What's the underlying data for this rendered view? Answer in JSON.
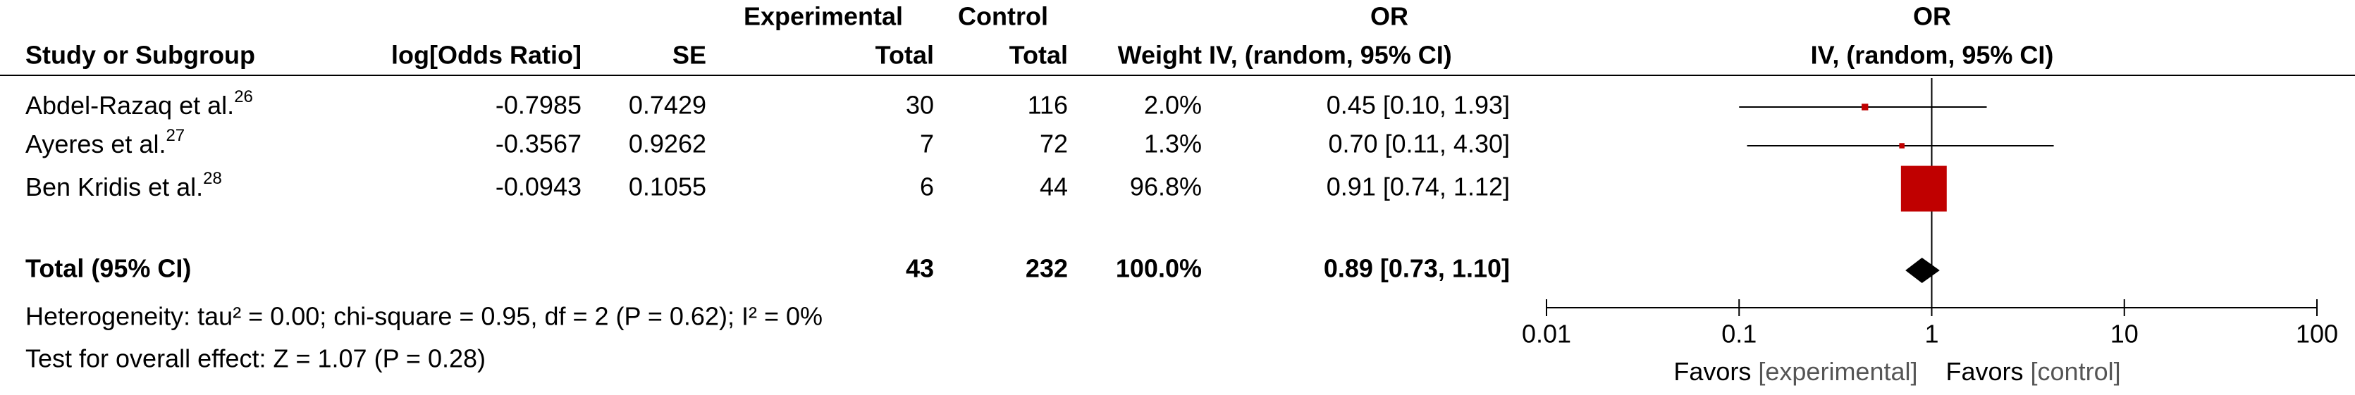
{
  "table": {
    "group_headers": {
      "experimental": "Experimental",
      "control": "Control",
      "or_table": "OR",
      "or_plot": "OR"
    },
    "columns": {
      "study": "Study or Subgroup",
      "log_or": "log[Odds Ratio]",
      "se": "SE",
      "exp_total": "Total",
      "ctrl_total": "Total",
      "weight": "Weight",
      "method": "IV, (random, 95% CI)",
      "plot_method": "IV, (random, 95% CI)"
    },
    "rows": [
      {
        "study": "Abdel-Razaq et al.",
        "ref": "26",
        "log_or": "-0.7985",
        "se": "0.7429",
        "exp_total": "30",
        "ctrl_total": "116",
        "weight": "2.0%",
        "or_ci": "0.45 [0.10, 1.93]"
      },
      {
        "study": "Ayeres et al.",
        "ref": "27",
        "log_or": "-0.3567",
        "se": "0.9262",
        "exp_total": "7",
        "ctrl_total": "72",
        "weight": "1.3%",
        "or_ci": "0.70 [0.11, 4.30]"
      },
      {
        "study": "Ben Kridis et al.",
        "ref": "28",
        "log_or": "-0.0943",
        "se": "0.1055",
        "exp_total": "6",
        "ctrl_total": "44",
        "weight": "96.8%",
        "or_ci": "0.91 [0.74, 1.12]"
      }
    ],
    "total": {
      "label": "Total (95% CI)",
      "exp_total": "43",
      "ctrl_total": "232",
      "weight": "100.0%",
      "or_ci": "0.89 [0.73, 1.10]"
    },
    "heterogeneity": "Heterogeneity: tau² = 0.00; chi-square = 0.95, df = 2 (P = 0.62); I² = 0%",
    "overall": "Test for overall effect: Z = 1.07 (P = 0.28)"
  },
  "chart_data": {
    "type": "forest",
    "log_scale": true,
    "xlim": [
      0.01,
      100
    ],
    "xticks": [
      0.01,
      0.1,
      1,
      10,
      100
    ],
    "estimates": [
      0.45,
      0.7,
      0.91
    ],
    "lower": [
      0.1,
      0.11,
      0.74
    ],
    "upper": [
      1.93,
      4.3,
      1.12
    ],
    "weights": [
      2.0,
      1.3,
      96.8
    ],
    "total": {
      "estimate": 0.89,
      "lower": 0.73,
      "upper": 1.1
    },
    "color": "#c00000",
    "total_color": "#000000",
    "favors_left": "Favors",
    "favors_left_group": "[experimental]",
    "favors_right": "Favors",
    "favors_right_group": "[control]"
  }
}
